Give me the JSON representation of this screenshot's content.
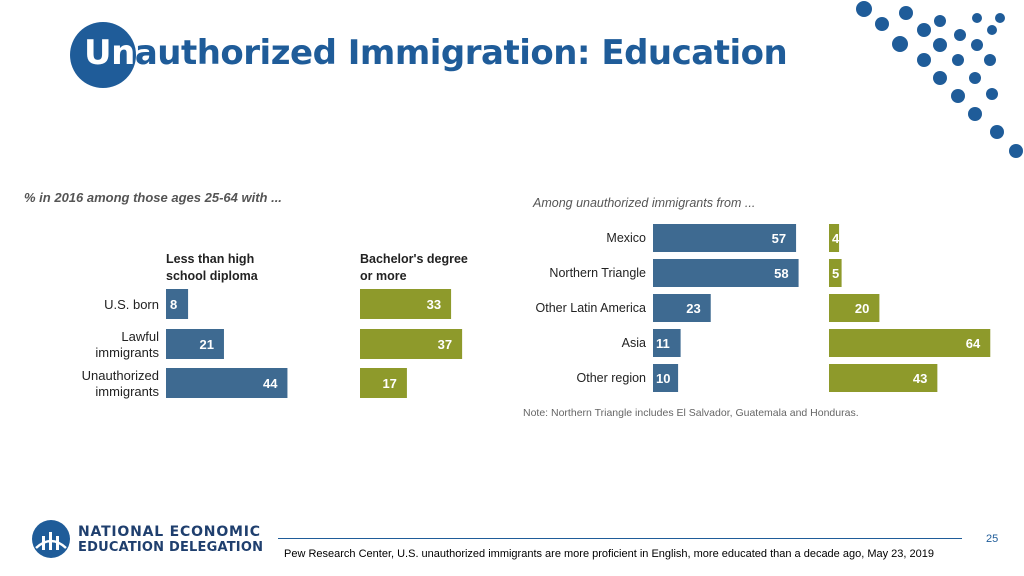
{
  "title": {
    "first": "Un",
    "rest": "authorized Immigration: Education"
  },
  "chart_data": [
    {
      "type": "bar",
      "orientation": "horizontal",
      "subtitle": "% in 2016 among those ages 25-64 with ...",
      "categories": [
        "U.S. born",
        "Lawful immigrants",
        "Unauthorized immigrants"
      ],
      "category_lines": [
        [
          "U.S. born"
        ],
        [
          "Lawful",
          "immigrants"
        ],
        [
          "Unauthorized",
          "immigrants"
        ]
      ],
      "series": [
        {
          "name": "Less than high school diploma",
          "name_lines": [
            "Less than high",
            "school diploma"
          ],
          "values": [
            8,
            21,
            44
          ],
          "color": "#3e6a91"
        },
        {
          "name": "Bachelor's degree or more",
          "name_lines": [
            "Bachelor's degree",
            "or more"
          ],
          "values": [
            33,
            37,
            17
          ],
          "color": "#8e9a2b"
        }
      ]
    },
    {
      "type": "bar",
      "orientation": "horizontal",
      "subtitle": "Among unauthorized immigrants from ...",
      "categories": [
        "Mexico",
        "Northern Triangle",
        "Other Latin America",
        "Asia",
        "Other region"
      ],
      "series": [
        {
          "values": [
            57,
            58,
            23,
            11,
            10
          ],
          "color": "#3e6a91"
        },
        {
          "values": [
            4,
            5,
            20,
            64,
            43
          ],
          "color": "#8e9a2b"
        }
      ],
      "note": "Note: Northern Triangle includes El Salvador, Guatemala and Honduras."
    }
  ],
  "logo": {
    "line1": "NATIONAL ECONOMIC",
    "line2": "EDUCATION DELEGATION"
  },
  "page_number": "25",
  "source": "Pew Research Center, U.S. unauthorized immigrants are more proficient in English, more educated than a decade ago, May 23, 2019",
  "colors": {
    "brand_blue": "#1f5c99",
    "bar_blue": "#3e6a91",
    "bar_olive": "#8e9a2b"
  }
}
